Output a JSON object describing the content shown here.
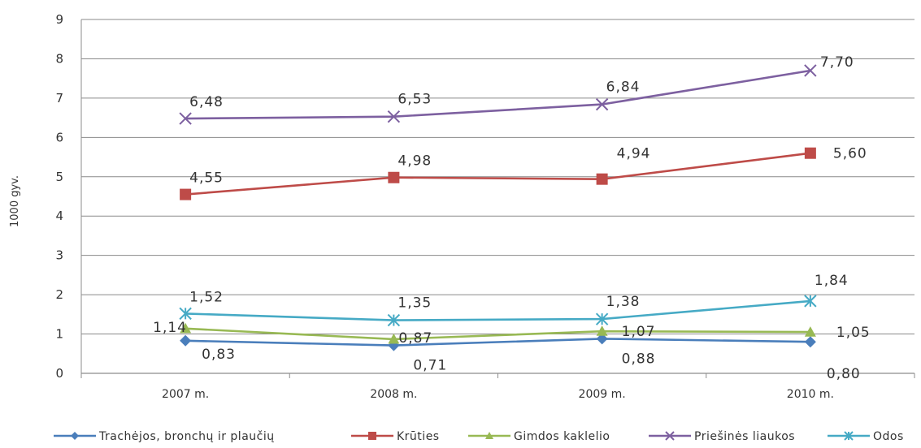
{
  "chart_data": {
    "type": "line",
    "title": "",
    "xlabel": "",
    "ylabel": "1000 gyv.",
    "ylim": [
      0,
      9
    ],
    "yticks": [
      "0",
      "1",
      "2",
      "3",
      "4",
      "5",
      "6",
      "7",
      "8",
      "9"
    ],
    "categories": [
      "2007 m.",
      "2008 m.",
      "2009 m.",
      "2010 m."
    ],
    "grid": true,
    "legend": "bottom",
    "series": [
      {
        "name": "Trachėjos, bronchų ir plaučių",
        "color": "#4a7ebb",
        "marker": "diamond",
        "values": [
          0.83,
          0.71,
          0.88,
          0.8
        ],
        "labels": [
          "0,83",
          "0,71",
          "0,88",
          "0,80"
        ]
      },
      {
        "name": "Krūties",
        "color": "#be4b48",
        "marker": "square",
        "values": [
          4.55,
          4.98,
          4.94,
          5.6
        ],
        "labels": [
          "4,55",
          "4,98",
          "4,94",
          "5,60"
        ]
      },
      {
        "name": "Gimdos kaklelio",
        "color": "#98b954",
        "marker": "triangle",
        "values": [
          1.14,
          0.87,
          1.07,
          1.05
        ],
        "labels": [
          "1,14",
          "0,87",
          "1,07",
          "1,05"
        ]
      },
      {
        "name": "Priešinės liaukos",
        "color": "#7d60a0",
        "marker": "x",
        "values": [
          6.48,
          6.53,
          6.84,
          7.7
        ],
        "labels": [
          "6,48",
          "6,53",
          "6,84",
          "7,70"
        ]
      },
      {
        "name": "Odos",
        "color": "#46aac5",
        "marker": "star",
        "values": [
          1.52,
          1.35,
          1.38,
          1.84
        ],
        "labels": [
          "1,52",
          "1,35",
          "1,38",
          "1,84"
        ]
      }
    ]
  }
}
